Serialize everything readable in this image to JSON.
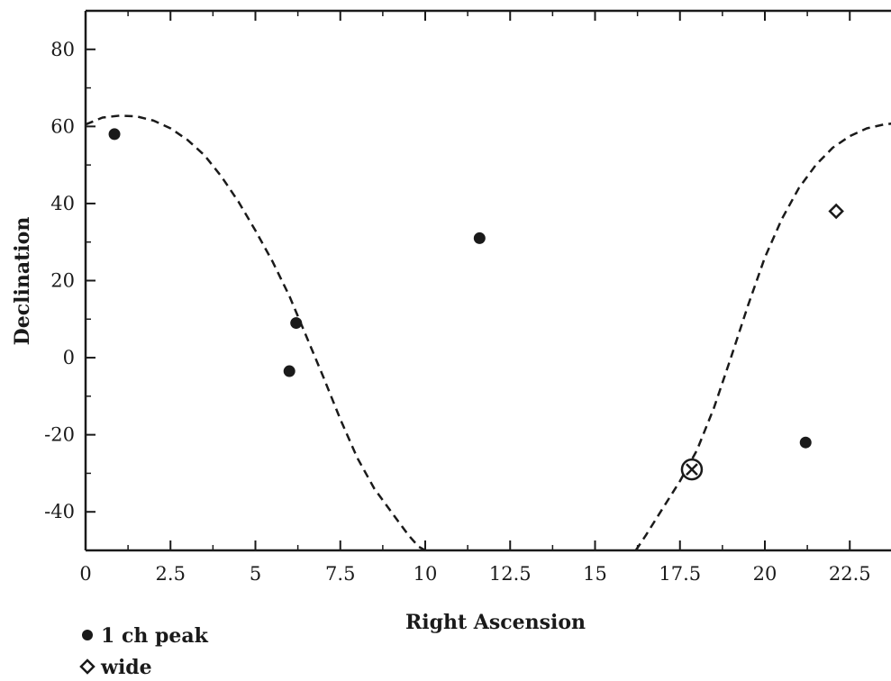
{
  "chart_data": {
    "type": "scatter",
    "title": "",
    "xlabel": "Right Ascension",
    "ylabel": "Declination",
    "xlim": [
      0,
      24
    ],
    "ylim": [
      -50,
      90
    ],
    "xticks": [
      0,
      2.5,
      5,
      7.5,
      10,
      12.5,
      15,
      17.5,
      20,
      22.5
    ],
    "xtick_labels": [
      "0",
      "2.5",
      "5",
      "7.5",
      "10",
      "12.5",
      "15",
      "17.5",
      "20",
      "22.5"
    ],
    "yticks": [
      -40,
      -20,
      0,
      20,
      40,
      60,
      80
    ],
    "ytick_labels": [
      "-40",
      "-20",
      "0",
      "20",
      "40",
      "60",
      "80"
    ],
    "grid": false,
    "legend_position": "bottom-left",
    "series": [
      {
        "name": "1 ch peak",
        "marker": "filled-circle",
        "points": [
          {
            "x": 0.85,
            "y": 58
          },
          {
            "x": 6.2,
            "y": 9
          },
          {
            "x": 6.0,
            "y": -3.5
          },
          {
            "x": 11.6,
            "y": 31
          },
          {
            "x": 21.2,
            "y": -22
          }
        ]
      },
      {
        "name": "wide",
        "marker": "open-diamond",
        "points": [
          {
            "x": 22.1,
            "y": 38
          }
        ]
      },
      {
        "marker": "circled-x",
        "points": [
          {
            "x": 17.85,
            "y": -29
          }
        ]
      },
      {
        "marker": "dashed-curve",
        "points": [
          {
            "x": 0,
            "y": 60.5
          },
          {
            "x": 0.5,
            "y": 62.3
          },
          {
            "x": 1.0,
            "y": 62.8
          },
          {
            "x": 1.5,
            "y": 62.6
          },
          {
            "x": 2.0,
            "y": 61.5
          },
          {
            "x": 2.5,
            "y": 59.5
          },
          {
            "x": 3.0,
            "y": 56.5
          },
          {
            "x": 3.5,
            "y": 52.5
          },
          {
            "x": 4.0,
            "y": 47
          },
          {
            "x": 4.5,
            "y": 40.5
          },
          {
            "x": 5.0,
            "y": 33
          },
          {
            "x": 5.5,
            "y": 25
          },
          {
            "x": 6.0,
            "y": 16
          },
          {
            "x": 6.5,
            "y": 5.5
          },
          {
            "x": 7.0,
            "y": -5
          },
          {
            "x": 7.5,
            "y": -16
          },
          {
            "x": 8.0,
            "y": -26
          },
          {
            "x": 8.5,
            "y": -34
          },
          {
            "x": 9.0,
            "y": -40
          },
          {
            "x": 9.5,
            "y": -46
          },
          {
            "x": 9.8,
            "y": -49
          },
          {
            "x": 10.0,
            "y": -50
          }
        ]
      },
      {
        "marker": "dashed-curve",
        "points": [
          {
            "x": 16.2,
            "y": -50
          },
          {
            "x": 16.5,
            "y": -46
          },
          {
            "x": 17.0,
            "y": -39
          },
          {
            "x": 17.5,
            "y": -32
          },
          {
            "x": 18.0,
            "y": -24
          },
          {
            "x": 18.5,
            "y": -13
          },
          {
            "x": 19.0,
            "y": 0
          },
          {
            "x": 19.5,
            "y": 13.5
          },
          {
            "x": 20.0,
            "y": 26
          },
          {
            "x": 20.5,
            "y": 36
          },
          {
            "x": 21.0,
            "y": 44
          },
          {
            "x": 21.5,
            "y": 50
          },
          {
            "x": 22.0,
            "y": 54.5
          },
          {
            "x": 22.5,
            "y": 57.5
          },
          {
            "x": 23.0,
            "y": 59.5
          },
          {
            "x": 23.5,
            "y": 60.5
          },
          {
            "x": 24.0,
            "y": 61
          }
        ]
      }
    ],
    "legend": [
      {
        "marker": "filled-circle",
        "label": "1 ch peak"
      },
      {
        "marker": "open-diamond",
        "label": "wide"
      }
    ]
  }
}
